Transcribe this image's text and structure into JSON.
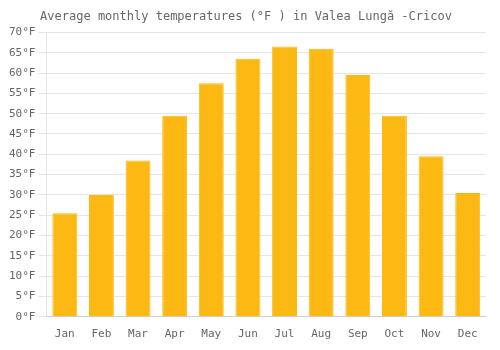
{
  "chart_data": {
    "type": "bar",
    "title": "Average monthly temperatures (°F ) in Valea Lungă -Cricov",
    "categories": [
      "Jan",
      "Feb",
      "Mar",
      "Apr",
      "May",
      "Jun",
      "Jul",
      "Aug",
      "Sep",
      "Oct",
      "Nov",
      "Dec"
    ],
    "values": [
      25.5,
      30.0,
      38.5,
      49.5,
      57.5,
      63.5,
      66.5,
      66.0,
      59.5,
      49.5,
      39.5,
      30.5
    ],
    "color": "#FDB913",
    "ylim": [
      0,
      70
    ],
    "yticks": [
      {
        "value": 0,
        "label": "0°F"
      },
      {
        "value": 5,
        "label": "5°F"
      },
      {
        "value": 10,
        "label": "10°F"
      },
      {
        "value": 15,
        "label": "15°F"
      },
      {
        "value": 20,
        "label": "20°F"
      },
      {
        "value": 25,
        "label": "25°F"
      },
      {
        "value": 30,
        "label": "30°F"
      },
      {
        "value": 35,
        "label": "35°F"
      },
      {
        "value": 40,
        "label": "40°F"
      },
      {
        "value": 45,
        "label": "45°F"
      },
      {
        "value": 50,
        "label": "50°F"
      },
      {
        "value": 55,
        "label": "55°F"
      },
      {
        "value": 60,
        "label": "60°F"
      },
      {
        "value": 65,
        "label": "65°F"
      },
      {
        "value": 70,
        "label": "70°F"
      }
    ],
    "grid": true
  }
}
